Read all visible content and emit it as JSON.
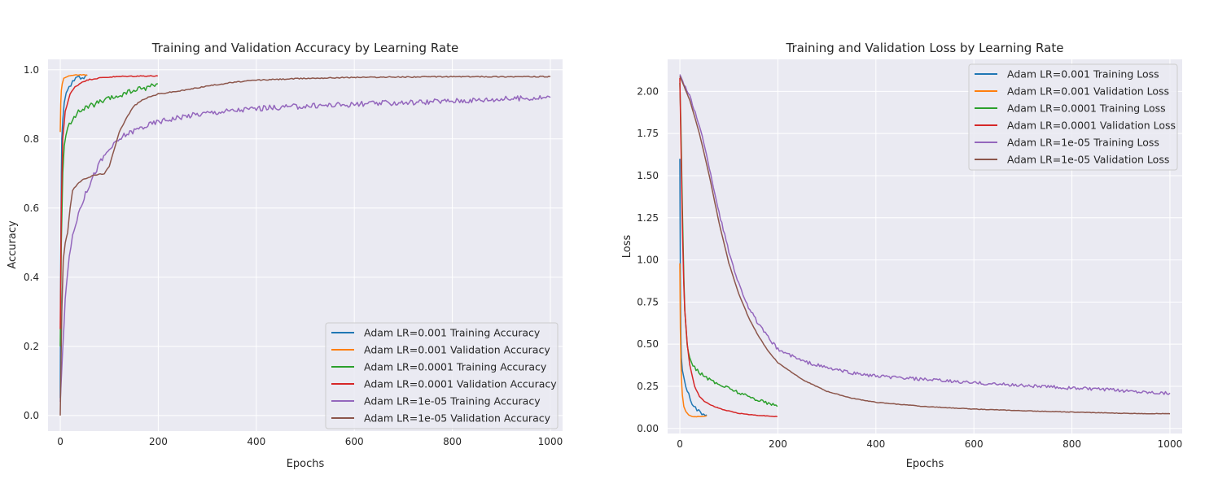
{
  "colors": {
    "plot_bg": "#EAEAF2",
    "grid": "#FFFFFF",
    "series": [
      "#1f77b4",
      "#ff7f0e",
      "#2ca02c",
      "#d62728",
      "#9467bd",
      "#8c564b"
    ]
  },
  "chart_data": [
    {
      "type": "line",
      "title": "Training and Validation Accuracy by Learning Rate",
      "xlabel": "Epochs",
      "ylabel": "Accuracy",
      "xlim": [
        -25,
        1025
      ],
      "ylim": [
        -0.045,
        1.03
      ],
      "xticks": [
        0,
        200,
        400,
        600,
        800,
        1000
      ],
      "yticks": [
        0.0,
        0.2,
        0.4,
        0.6,
        0.8,
        1.0
      ],
      "xtick_labels": [
        "0",
        "200",
        "400",
        "600",
        "800",
        "1000"
      ],
      "ytick_labels": [
        "0.0",
        "0.2",
        "0.4",
        "0.6",
        "0.8",
        "1.0"
      ],
      "grid": true,
      "legend_position": "lower-right",
      "series": [
        {
          "name": "Adam LR=0.001 Training Accuracy",
          "color": "#1f77b4",
          "points": [
            [
              0,
              0.05
            ],
            [
              1,
              0.45
            ],
            [
              2,
              0.7
            ],
            [
              3,
              0.8
            ],
            [
              5,
              0.86
            ],
            [
              8,
              0.9
            ],
            [
              12,
              0.93
            ],
            [
              18,
              0.95
            ],
            [
              25,
              0.965
            ],
            [
              35,
              0.975
            ],
            [
              45,
              0.98
            ],
            [
              55,
              0.985
            ]
          ]
        },
        {
          "name": "Adam LR=0.001 Validation Accuracy",
          "color": "#ff7f0e",
          "points": [
            [
              0,
              0.82
            ],
            [
              1,
              0.9
            ],
            [
              2,
              0.94
            ],
            [
              4,
              0.96
            ],
            [
              7,
              0.975
            ],
            [
              12,
              0.98
            ],
            [
              20,
              0.983
            ],
            [
              35,
              0.985
            ],
            [
              55,
              0.985
            ]
          ]
        },
        {
          "name": "Adam LR=0.0001 Training Accuracy",
          "color": "#2ca02c",
          "points": [
            [
              0,
              0.2
            ],
            [
              2,
              0.5
            ],
            [
              5,
              0.7
            ],
            [
              8,
              0.78
            ],
            [
              15,
              0.83
            ],
            [
              25,
              0.86
            ],
            [
              40,
              0.88
            ],
            [
              60,
              0.895
            ],
            [
              90,
              0.91
            ],
            [
              120,
              0.925
            ],
            [
              150,
              0.94
            ],
            [
              180,
              0.95
            ],
            [
              199,
              0.96
            ]
          ]
        },
        {
          "name": "Adam LR=0.0001 Validation Accuracy",
          "color": "#d62728",
          "points": [
            [
              0,
              0.25
            ],
            [
              2,
              0.6
            ],
            [
              5,
              0.8
            ],
            [
              10,
              0.88
            ],
            [
              20,
              0.93
            ],
            [
              30,
              0.95
            ],
            [
              45,
              0.965
            ],
            [
              60,
              0.972
            ],
            [
              90,
              0.978
            ],
            [
              130,
              0.981
            ],
            [
              170,
              0.982
            ],
            [
              199,
              0.982
            ]
          ]
        },
        {
          "name": "Adam LR=1e-05 Training Accuracy",
          "color": "#9467bd",
          "points": [
            [
              0,
              0.04
            ],
            [
              5,
              0.2
            ],
            [
              10,
              0.33
            ],
            [
              15,
              0.42
            ],
            [
              25,
              0.52
            ],
            [
              40,
              0.6
            ],
            [
              60,
              0.67
            ],
            [
              80,
              0.73
            ],
            [
              100,
              0.77
            ],
            [
              130,
              0.81
            ],
            [
              160,
              0.83
            ],
            [
              200,
              0.85
            ],
            [
              250,
              0.865
            ],
            [
              300,
              0.875
            ],
            [
              400,
              0.888
            ],
            [
              500,
              0.895
            ],
            [
              600,
              0.9
            ],
            [
              700,
              0.905
            ],
            [
              800,
              0.91
            ],
            [
              900,
              0.915
            ],
            [
              1000,
              0.92
            ]
          ]
        },
        {
          "name": "Adam LR=1e-05 Validation Accuracy",
          "color": "#8c564b",
          "points": [
            [
              0,
              0.0
            ],
            [
              3,
              0.3
            ],
            [
              6,
              0.45
            ],
            [
              10,
              0.5
            ],
            [
              15,
              0.53
            ],
            [
              20,
              0.6
            ],
            [
              25,
              0.65
            ],
            [
              35,
              0.67
            ],
            [
              50,
              0.685
            ],
            [
              70,
              0.695
            ],
            [
              90,
              0.7
            ],
            [
              100,
              0.72
            ],
            [
              110,
              0.77
            ],
            [
              120,
              0.82
            ],
            [
              135,
              0.86
            ],
            [
              150,
              0.895
            ],
            [
              170,
              0.915
            ],
            [
              200,
              0.93
            ],
            [
              250,
              0.94
            ],
            [
              300,
              0.953
            ],
            [
              350,
              0.963
            ],
            [
              400,
              0.97
            ],
            [
              500,
              0.975
            ],
            [
              600,
              0.978
            ],
            [
              800,
              0.98
            ],
            [
              1000,
              0.98
            ]
          ]
        }
      ]
    },
    {
      "type": "line",
      "title": "Training and Validation Loss by Learning Rate",
      "xlabel": "Epochs",
      "ylabel": "Loss",
      "xlim": [
        -25,
        1025
      ],
      "ylim": [
        -0.03,
        2.19
      ],
      "xticks": [
        0,
        200,
        400,
        600,
        800,
        1000
      ],
      "yticks": [
        0.0,
        0.25,
        0.5,
        0.75,
        1.0,
        1.25,
        1.5,
        1.75,
        2.0
      ],
      "xtick_labels": [
        "0",
        "200",
        "400",
        "600",
        "800",
        "1000"
      ],
      "ytick_labels": [
        "0.00",
        "0.25",
        "0.50",
        "0.75",
        "1.00",
        "1.25",
        "1.50",
        "1.75",
        "2.00"
      ],
      "grid": true,
      "legend_position": "upper-right",
      "series": [
        {
          "name": "Adam LR=0.001 Training Loss",
          "color": "#1f77b4",
          "points": [
            [
              0,
              1.6
            ],
            [
              1,
              0.9
            ],
            [
              2,
              0.55
            ],
            [
              3,
              0.42
            ],
            [
              5,
              0.35
            ],
            [
              8,
              0.3
            ],
            [
              12,
              0.25
            ],
            [
              18,
              0.2
            ],
            [
              25,
              0.15
            ],
            [
              35,
              0.11
            ],
            [
              45,
              0.09
            ],
            [
              55,
              0.08
            ]
          ]
        },
        {
          "name": "Adam LR=0.001 Validation Loss",
          "color": "#ff7f0e",
          "points": [
            [
              0,
              0.98
            ],
            [
              1,
              0.6
            ],
            [
              2,
              0.4
            ],
            [
              3,
              0.3
            ],
            [
              5,
              0.2
            ],
            [
              8,
              0.13
            ],
            [
              12,
              0.1
            ],
            [
              18,
              0.08
            ],
            [
              25,
              0.07
            ],
            [
              40,
              0.07
            ],
            [
              55,
              0.075
            ]
          ]
        },
        {
          "name": "Adam LR=0.0001 Training Loss",
          "color": "#2ca02c",
          "points": [
            [
              0,
              2.05
            ],
            [
              2,
              1.8
            ],
            [
              5,
              1.3
            ],
            [
              8,
              0.9
            ],
            [
              10,
              0.7
            ],
            [
              15,
              0.5
            ],
            [
              20,
              0.42
            ],
            [
              30,
              0.36
            ],
            [
              45,
              0.32
            ],
            [
              60,
              0.29
            ],
            [
              80,
              0.26
            ],
            [
              100,
              0.24
            ],
            [
              130,
              0.2
            ],
            [
              160,
              0.17
            ],
            [
              199,
              0.13
            ]
          ]
        },
        {
          "name": "Adam LR=0.0001 Validation Loss",
          "color": "#d62728",
          "points": [
            [
              0,
              2.08
            ],
            [
              2,
              1.7
            ],
            [
              5,
              1.2
            ],
            [
              8,
              0.85
            ],
            [
              10,
              0.7
            ],
            [
              15,
              0.5
            ],
            [
              20,
              0.38
            ],
            [
              30,
              0.25
            ],
            [
              40,
              0.19
            ],
            [
              50,
              0.16
            ],
            [
              70,
              0.13
            ],
            [
              90,
              0.11
            ],
            [
              120,
              0.09
            ],
            [
              150,
              0.08
            ],
            [
              199,
              0.07
            ]
          ]
        },
        {
          "name": "Adam LR=1e-05 Training Loss",
          "color": "#9467bd",
          "points": [
            [
              0,
              2.1
            ],
            [
              20,
              1.97
            ],
            [
              40,
              1.8
            ],
            [
              60,
              1.55
            ],
            [
              80,
              1.28
            ],
            [
              100,
              1.05
            ],
            [
              120,
              0.86
            ],
            [
              140,
              0.72
            ],
            [
              160,
              0.62
            ],
            [
              180,
              0.54
            ],
            [
              200,
              0.47
            ],
            [
              250,
              0.4
            ],
            [
              300,
              0.36
            ],
            [
              350,
              0.33
            ],
            [
              400,
              0.31
            ],
            [
              500,
              0.29
            ],
            [
              600,
              0.27
            ],
            [
              700,
              0.255
            ],
            [
              800,
              0.24
            ],
            [
              900,
              0.225
            ],
            [
              1000,
              0.21
            ]
          ]
        },
        {
          "name": "Adam LR=1e-05 Validation Loss",
          "color": "#8c564b",
          "points": [
            [
              0,
              2.09
            ],
            [
              20,
              1.95
            ],
            [
              40,
              1.75
            ],
            [
              60,
              1.5
            ],
            [
              80,
              1.22
            ],
            [
              100,
              0.98
            ],
            [
              120,
              0.8
            ],
            [
              140,
              0.66
            ],
            [
              160,
              0.55
            ],
            [
              180,
              0.46
            ],
            [
              200,
              0.39
            ],
            [
              250,
              0.29
            ],
            [
              300,
              0.22
            ],
            [
              350,
              0.18
            ],
            [
              400,
              0.155
            ],
            [
              500,
              0.13
            ],
            [
              600,
              0.115
            ],
            [
              700,
              0.105
            ],
            [
              800,
              0.097
            ],
            [
              900,
              0.09
            ],
            [
              1000,
              0.087
            ]
          ]
        }
      ]
    }
  ]
}
